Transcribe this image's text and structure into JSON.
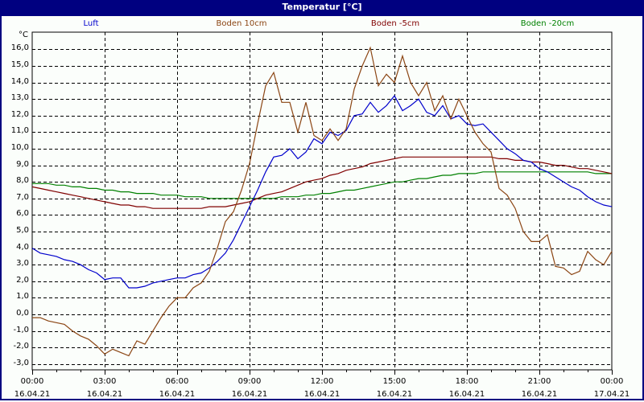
{
  "window": {
    "title": "Temperatur [°C]"
  },
  "legend": [
    {
      "label": "Luft",
      "color": "#0000cc"
    },
    {
      "label": "Boden 10cm",
      "color": "#8b4513"
    },
    {
      "label": "Boden -5cm",
      "color": "#800000"
    },
    {
      "label": "Boden -20cm",
      "color": "#008000"
    }
  ],
  "y_axis": {
    "unit": "°C",
    "ticks": [
      "16,0",
      "15,0",
      "14,0",
      "13,0",
      "12,0",
      "11,0",
      "10,0",
      "9,0",
      "8,0",
      "7,0",
      "6,0",
      "5,0",
      "4,0",
      "3,0",
      "2,0",
      "1,0",
      "0,0",
      "-1,0",
      "-2,0",
      "-3,0"
    ]
  },
  "x_axis": {
    "ticks": [
      {
        "time": "00:00",
        "date": "16.04.21"
      },
      {
        "time": "03:00",
        "date": "16.04.21"
      },
      {
        "time": "06:00",
        "date": "16.04.21"
      },
      {
        "time": "09:00",
        "date": "16.04.21"
      },
      {
        "time": "12:00",
        "date": "16.04.21"
      },
      {
        "time": "15:00",
        "date": "16.04.21"
      },
      {
        "time": "18:00",
        "date": "16.04.21"
      },
      {
        "time": "21:00",
        "date": "16.04.21"
      },
      {
        "time": "00:00",
        "date": "17.04.21"
      }
    ]
  },
  "chart_data": {
    "type": "line",
    "title": "Temperatur [°C]",
    "xlabel": "",
    "ylabel": "°C",
    "ylim": [
      -3.4,
      16.9
    ],
    "xlim_hours": [
      0,
      24
    ],
    "grid": true,
    "legend_position": "top",
    "x_hours": [
      0,
      0.333,
      0.667,
      1,
      1.333,
      1.667,
      2,
      2.333,
      2.667,
      3,
      3.333,
      3.667,
      4,
      4.333,
      4.667,
      5,
      5.333,
      5.667,
      6,
      6.333,
      6.667,
      7,
      7.333,
      7.667,
      8,
      8.333,
      8.667,
      9,
      9.333,
      9.667,
      10,
      10.333,
      10.667,
      11,
      11.333,
      11.667,
      12,
      12.333,
      12.667,
      13,
      13.333,
      13.667,
      14,
      14.333,
      14.667,
      15,
      15.333,
      15.667,
      16,
      16.333,
      16.667,
      17,
      17.333,
      17.667,
      18,
      18.333,
      18.667,
      19,
      19.333,
      19.667,
      20,
      20.333,
      20.667,
      21,
      21.333,
      21.667,
      22,
      22.333,
      22.667,
      23,
      23.333,
      23.667,
      24
    ],
    "series": [
      {
        "name": "Luft",
        "color": "#0000cc",
        "values": [
          4.0,
          3.7,
          3.6,
          3.5,
          3.3,
          3.2,
          3.0,
          2.7,
          2.5,
          2.1,
          2.2,
          2.2,
          1.6,
          1.6,
          1.7,
          1.9,
          2.0,
          2.1,
          2.2,
          2.2,
          2.4,
          2.5,
          2.8,
          3.2,
          3.7,
          4.5,
          5.5,
          6.5,
          7.5,
          8.6,
          9.5,
          9.6,
          10.0,
          9.4,
          9.8,
          10.6,
          10.3,
          11.0,
          10.8,
          11.1,
          12.0,
          12.1,
          12.8,
          12.2,
          12.6,
          13.2,
          12.3,
          12.6,
          13.0,
          12.2,
          12.0,
          12.6,
          11.8,
          12.0,
          11.5,
          11.4,
          11.5,
          11.0,
          10.5,
          10.0,
          9.7,
          9.3,
          9.2,
          8.8,
          8.6,
          8.3,
          8.0,
          7.7,
          7.5,
          7.1,
          6.8,
          6.6,
          6.5
        ]
      },
      {
        "name": "Boden 10cm",
        "color": "#8b4513",
        "values": [
          -0.2,
          -0.2,
          -0.4,
          -0.5,
          -0.6,
          -1.0,
          -1.3,
          -1.5,
          -1.9,
          -2.4,
          -2.1,
          -2.3,
          -2.5,
          -1.6,
          -1.8,
          -1.0,
          -0.2,
          0.5,
          1.0,
          1.0,
          1.6,
          1.9,
          2.6,
          4.0,
          5.6,
          6.2,
          7.5,
          9.1,
          11.5,
          13.8,
          14.6,
          12.8,
          12.8,
          11.0,
          12.8,
          10.8,
          10.5,
          11.2,
          10.5,
          11.2,
          13.6,
          15.0,
          16.1,
          13.8,
          14.5,
          14.0,
          15.6,
          14.0,
          13.2,
          14.0,
          12.3,
          13.2,
          11.8,
          13.0,
          12.0,
          11.0,
          10.3,
          9.8,
          7.6,
          7.2,
          6.4,
          5.0,
          4.4,
          4.4,
          4.8,
          2.9,
          2.8,
          2.4,
          2.6,
          3.8,
          3.3,
          3.0,
          3.8
        ]
      },
      {
        "name": "Boden -5cm",
        "color": "#800000",
        "values": [
          7.7,
          7.6,
          7.5,
          7.4,
          7.3,
          7.2,
          7.1,
          7.0,
          6.9,
          6.8,
          6.7,
          6.6,
          6.6,
          6.5,
          6.5,
          6.4,
          6.4,
          6.4,
          6.4,
          6.4,
          6.4,
          6.4,
          6.5,
          6.5,
          6.5,
          6.6,
          6.7,
          6.8,
          7.0,
          7.2,
          7.3,
          7.4,
          7.6,
          7.8,
          8.0,
          8.1,
          8.2,
          8.4,
          8.5,
          8.7,
          8.8,
          8.9,
          9.1,
          9.2,
          9.3,
          9.4,
          9.5,
          9.5,
          9.5,
          9.5,
          9.5,
          9.5,
          9.5,
          9.5,
          9.5,
          9.5,
          9.5,
          9.5,
          9.4,
          9.4,
          9.3,
          9.3,
          9.2,
          9.2,
          9.1,
          9.0,
          9.0,
          8.9,
          8.8,
          8.8,
          8.7,
          8.6,
          8.5
        ]
      },
      {
        "name": "Boden -20cm",
        "color": "#008000",
        "values": [
          7.9,
          7.9,
          7.9,
          7.8,
          7.8,
          7.7,
          7.7,
          7.6,
          7.6,
          7.5,
          7.5,
          7.4,
          7.4,
          7.3,
          7.3,
          7.3,
          7.2,
          7.2,
          7.2,
          7.1,
          7.1,
          7.1,
          7.0,
          7.0,
          7.0,
          7.0,
          7.0,
          7.0,
          7.0,
          7.0,
          7.0,
          7.1,
          7.1,
          7.1,
          7.2,
          7.2,
          7.3,
          7.3,
          7.4,
          7.5,
          7.5,
          7.6,
          7.7,
          7.8,
          7.9,
          8.0,
          8.0,
          8.1,
          8.2,
          8.2,
          8.3,
          8.4,
          8.4,
          8.5,
          8.5,
          8.5,
          8.6,
          8.6,
          8.6,
          8.6,
          8.6,
          8.6,
          8.6,
          8.6,
          8.6,
          8.6,
          8.6,
          8.6,
          8.6,
          8.6,
          8.5,
          8.5,
          8.5
        ]
      }
    ]
  }
}
